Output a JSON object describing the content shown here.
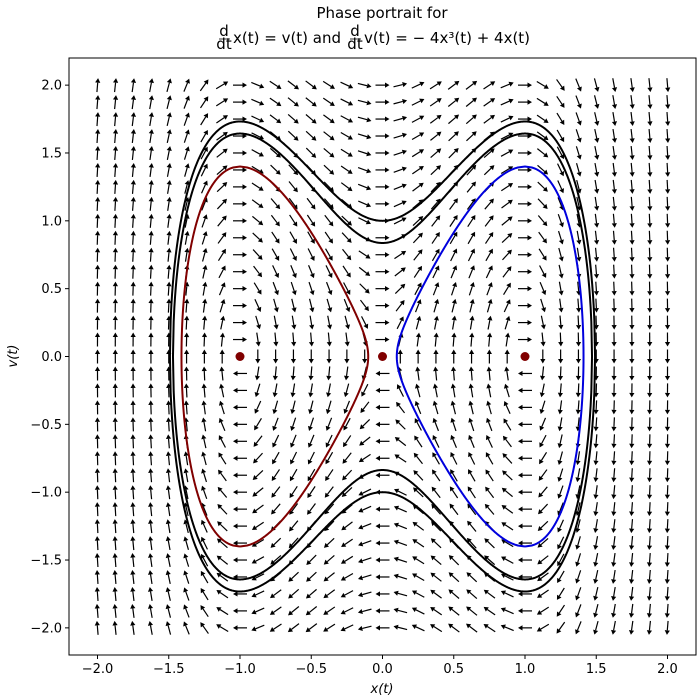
{
  "chart_data": {
    "type": "quiver",
    "title_line1": "Phase portrait for",
    "title_line2_left": "x(t) = v(t) and",
    "title_line2_right": "v(t) = − 4x³(t) + 4x(t)",
    "title_derivative_num": "d",
    "title_derivative_den": "dt",
    "xlabel": "x(t)",
    "ylabel": "v(t)",
    "xlim": [
      -2.2,
      2.2
    ],
    "ylim": [
      -2.2,
      2.2
    ],
    "xticks": [
      -2.0,
      -1.5,
      -1.0,
      -0.5,
      0.0,
      0.5,
      1.0,
      1.5,
      2.0
    ],
    "yticks": [
      -2.0,
      -1.5,
      -1.0,
      -0.5,
      0.0,
      0.5,
      1.0,
      1.5,
      2.0
    ],
    "xtick_labels": [
      "−2.0",
      "−1.5",
      "−1.0",
      "−0.5",
      "0.0",
      "0.5",
      "1.0",
      "1.5",
      "2.0"
    ],
    "ytick_labels": [
      "−2.0",
      "−1.5",
      "−1.0",
      "−0.5",
      "0.0",
      "0.5",
      "1.0",
      "1.5",
      "2.0"
    ],
    "grid": false,
    "vector_field": {
      "x_range": [
        -2.0,
        2.0
      ],
      "v_range": [
        -2.0,
        2.0
      ],
      "n": 33,
      "dx_dt": "v",
      "dv_dt": "-4x^3 + 4x",
      "color": "#000000"
    },
    "trajectories": [
      {
        "energy": 0.5,
        "branch": "outer",
        "color": "#000000"
      },
      {
        "energy": 0.35,
        "branch": "outer",
        "color": "#000000"
      },
      {
        "energy": -0.02,
        "branch": "left",
        "color": "#800000"
      },
      {
        "energy": -0.02,
        "branch": "right",
        "color": "#0000dd"
      }
    ],
    "fixed_points": [
      {
        "x": -1.0,
        "v": 0.0
      },
      {
        "x": 0.0,
        "v": 0.0
      },
      {
        "x": 1.0,
        "v": 0.0
      }
    ],
    "fixed_point_color": "#800000"
  }
}
